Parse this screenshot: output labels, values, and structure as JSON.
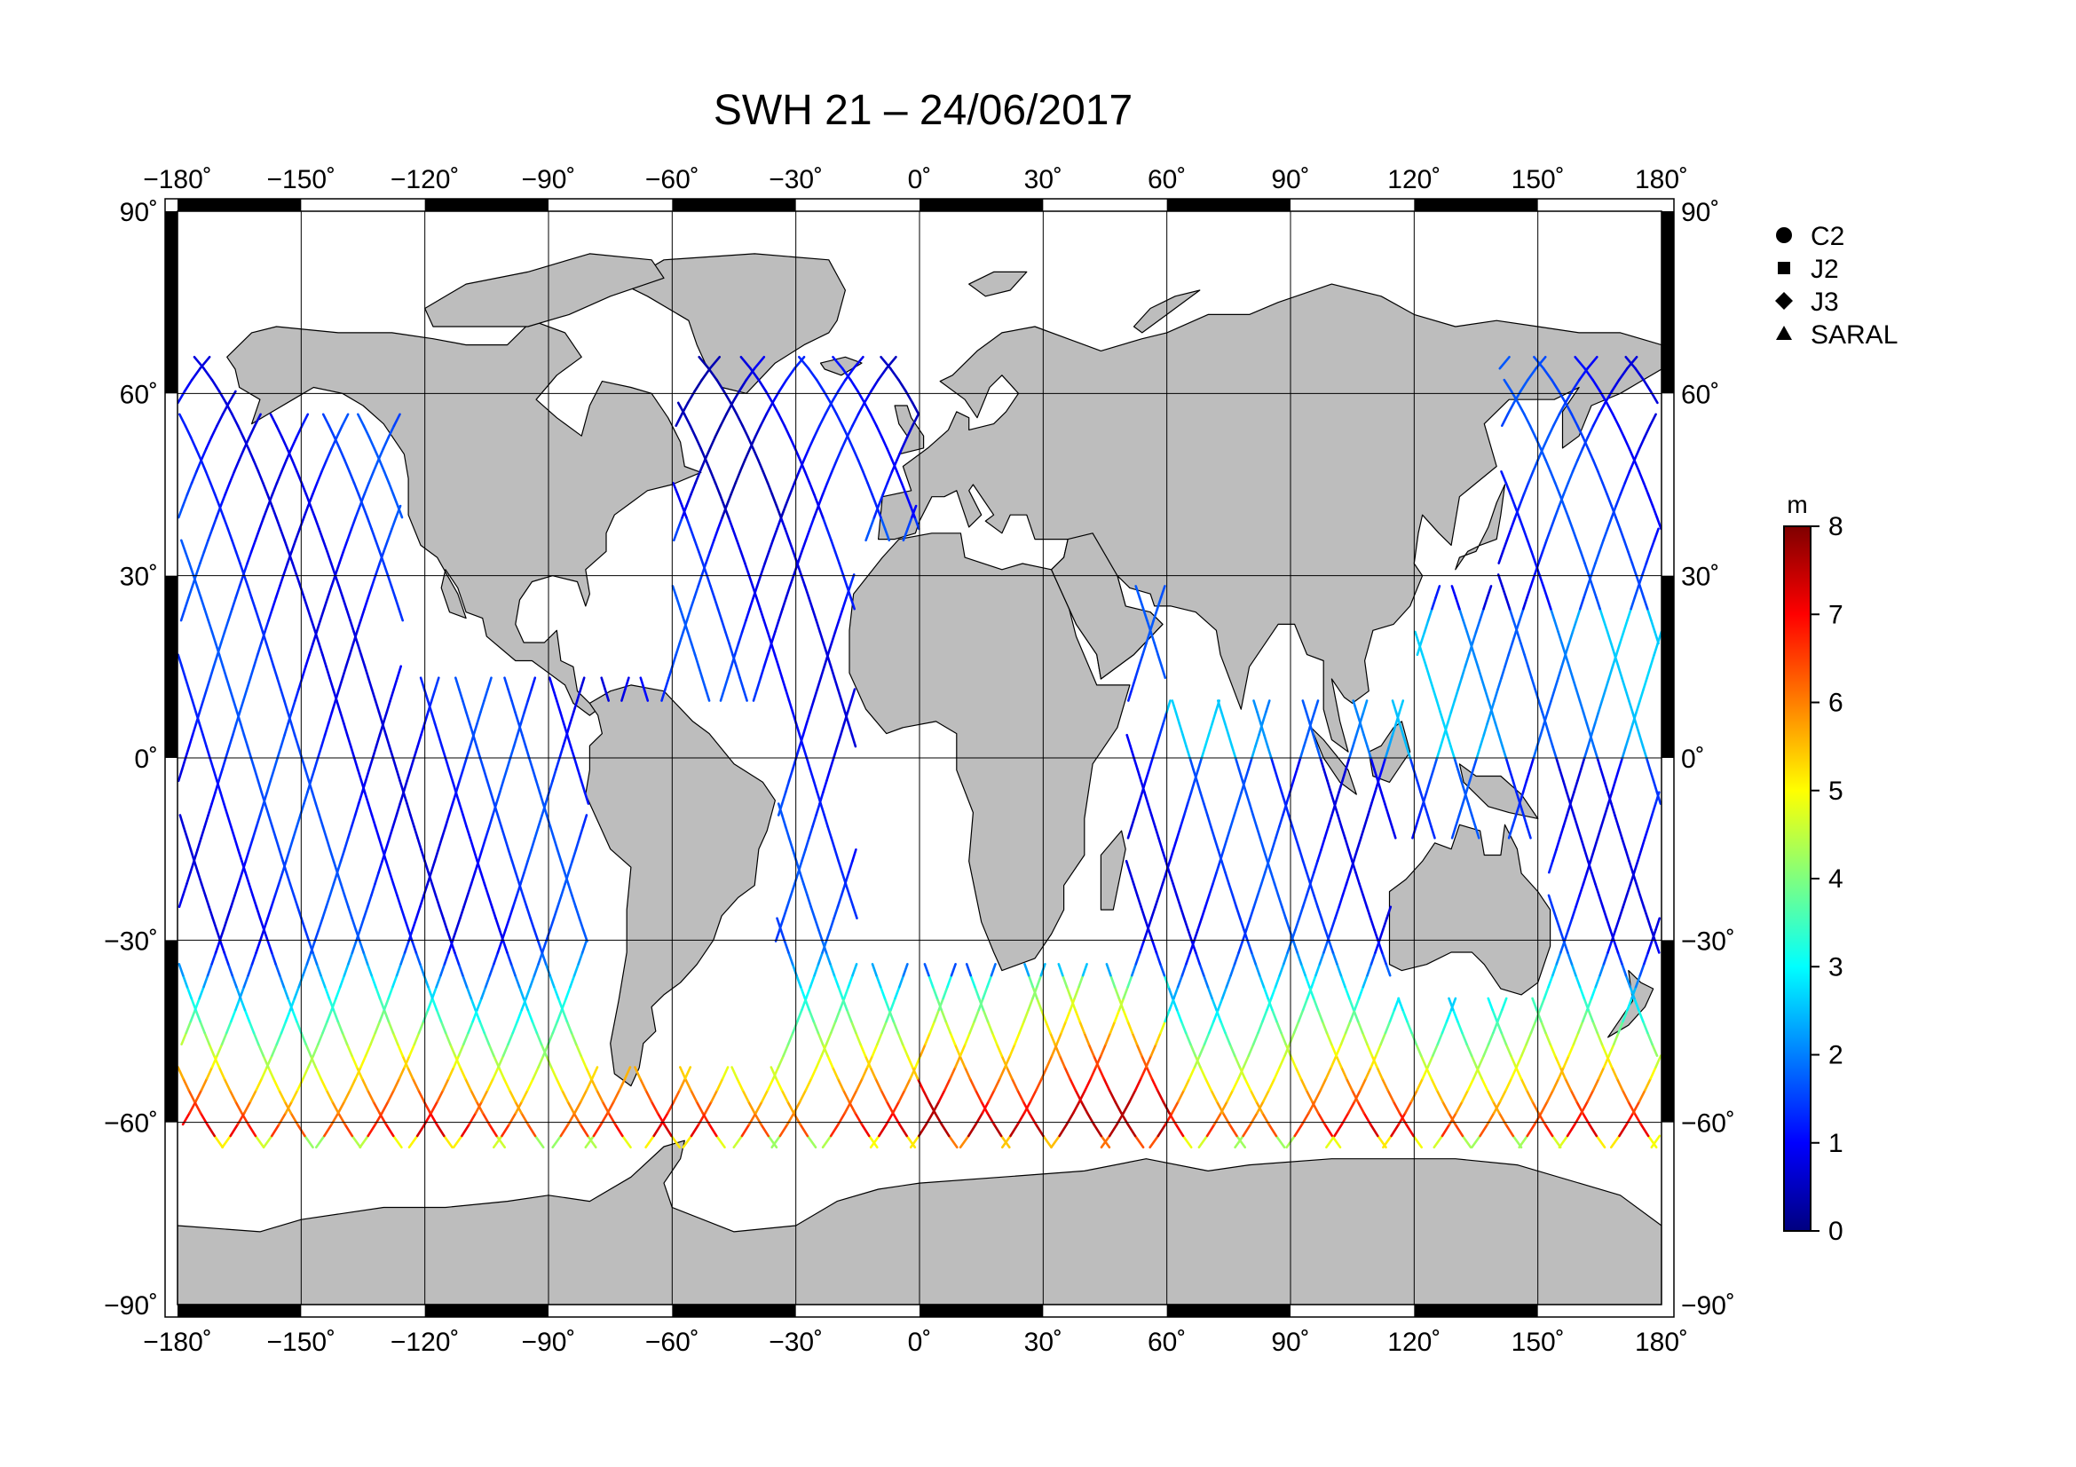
{
  "title": "SWH 21 – 24/06/2017",
  "lon_ticks": [
    "−180˚",
    "−150˚",
    "−120˚",
    "−90˚",
    "−60˚",
    "−30˚",
    "0˚",
    "30˚",
    "60˚",
    "90˚",
    "120˚",
    "150˚",
    "180˚"
  ],
  "lat_ticks_left": [
    "90˚",
    "60˚",
    "30˚",
    "0˚",
    "−30˚",
    "−60˚",
    "−90˚"
  ],
  "lat_ticks_right": [
    "90˚",
    "60˚",
    "30˚",
    "0˚",
    "−30˚",
    "−60˚",
    "−90˚"
  ],
  "legend": [
    {
      "label": "C2",
      "marker": "circle"
    },
    {
      "label": "J2",
      "marker": "square"
    },
    {
      "label": "J3",
      "marker": "diamond"
    },
    {
      "label": "SARAL",
      "marker": "triangle"
    }
  ],
  "colorbar": {
    "unit": "m",
    "min": 0,
    "max": 8,
    "ticks": [
      "0",
      "1",
      "2",
      "3",
      "4",
      "5",
      "6",
      "7",
      "8"
    ],
    "colors": [
      "#00007f",
      "#0000ff",
      "#007fff",
      "#00ffff",
      "#7fff7f",
      "#ffff00",
      "#ff7f00",
      "#ff0000",
      "#7f0000"
    ]
  },
  "colors": {
    "land": "#bdbdbd",
    "land_edge": "#000000",
    "ocean": "#ffffff",
    "grid": "#000000"
  }
}
